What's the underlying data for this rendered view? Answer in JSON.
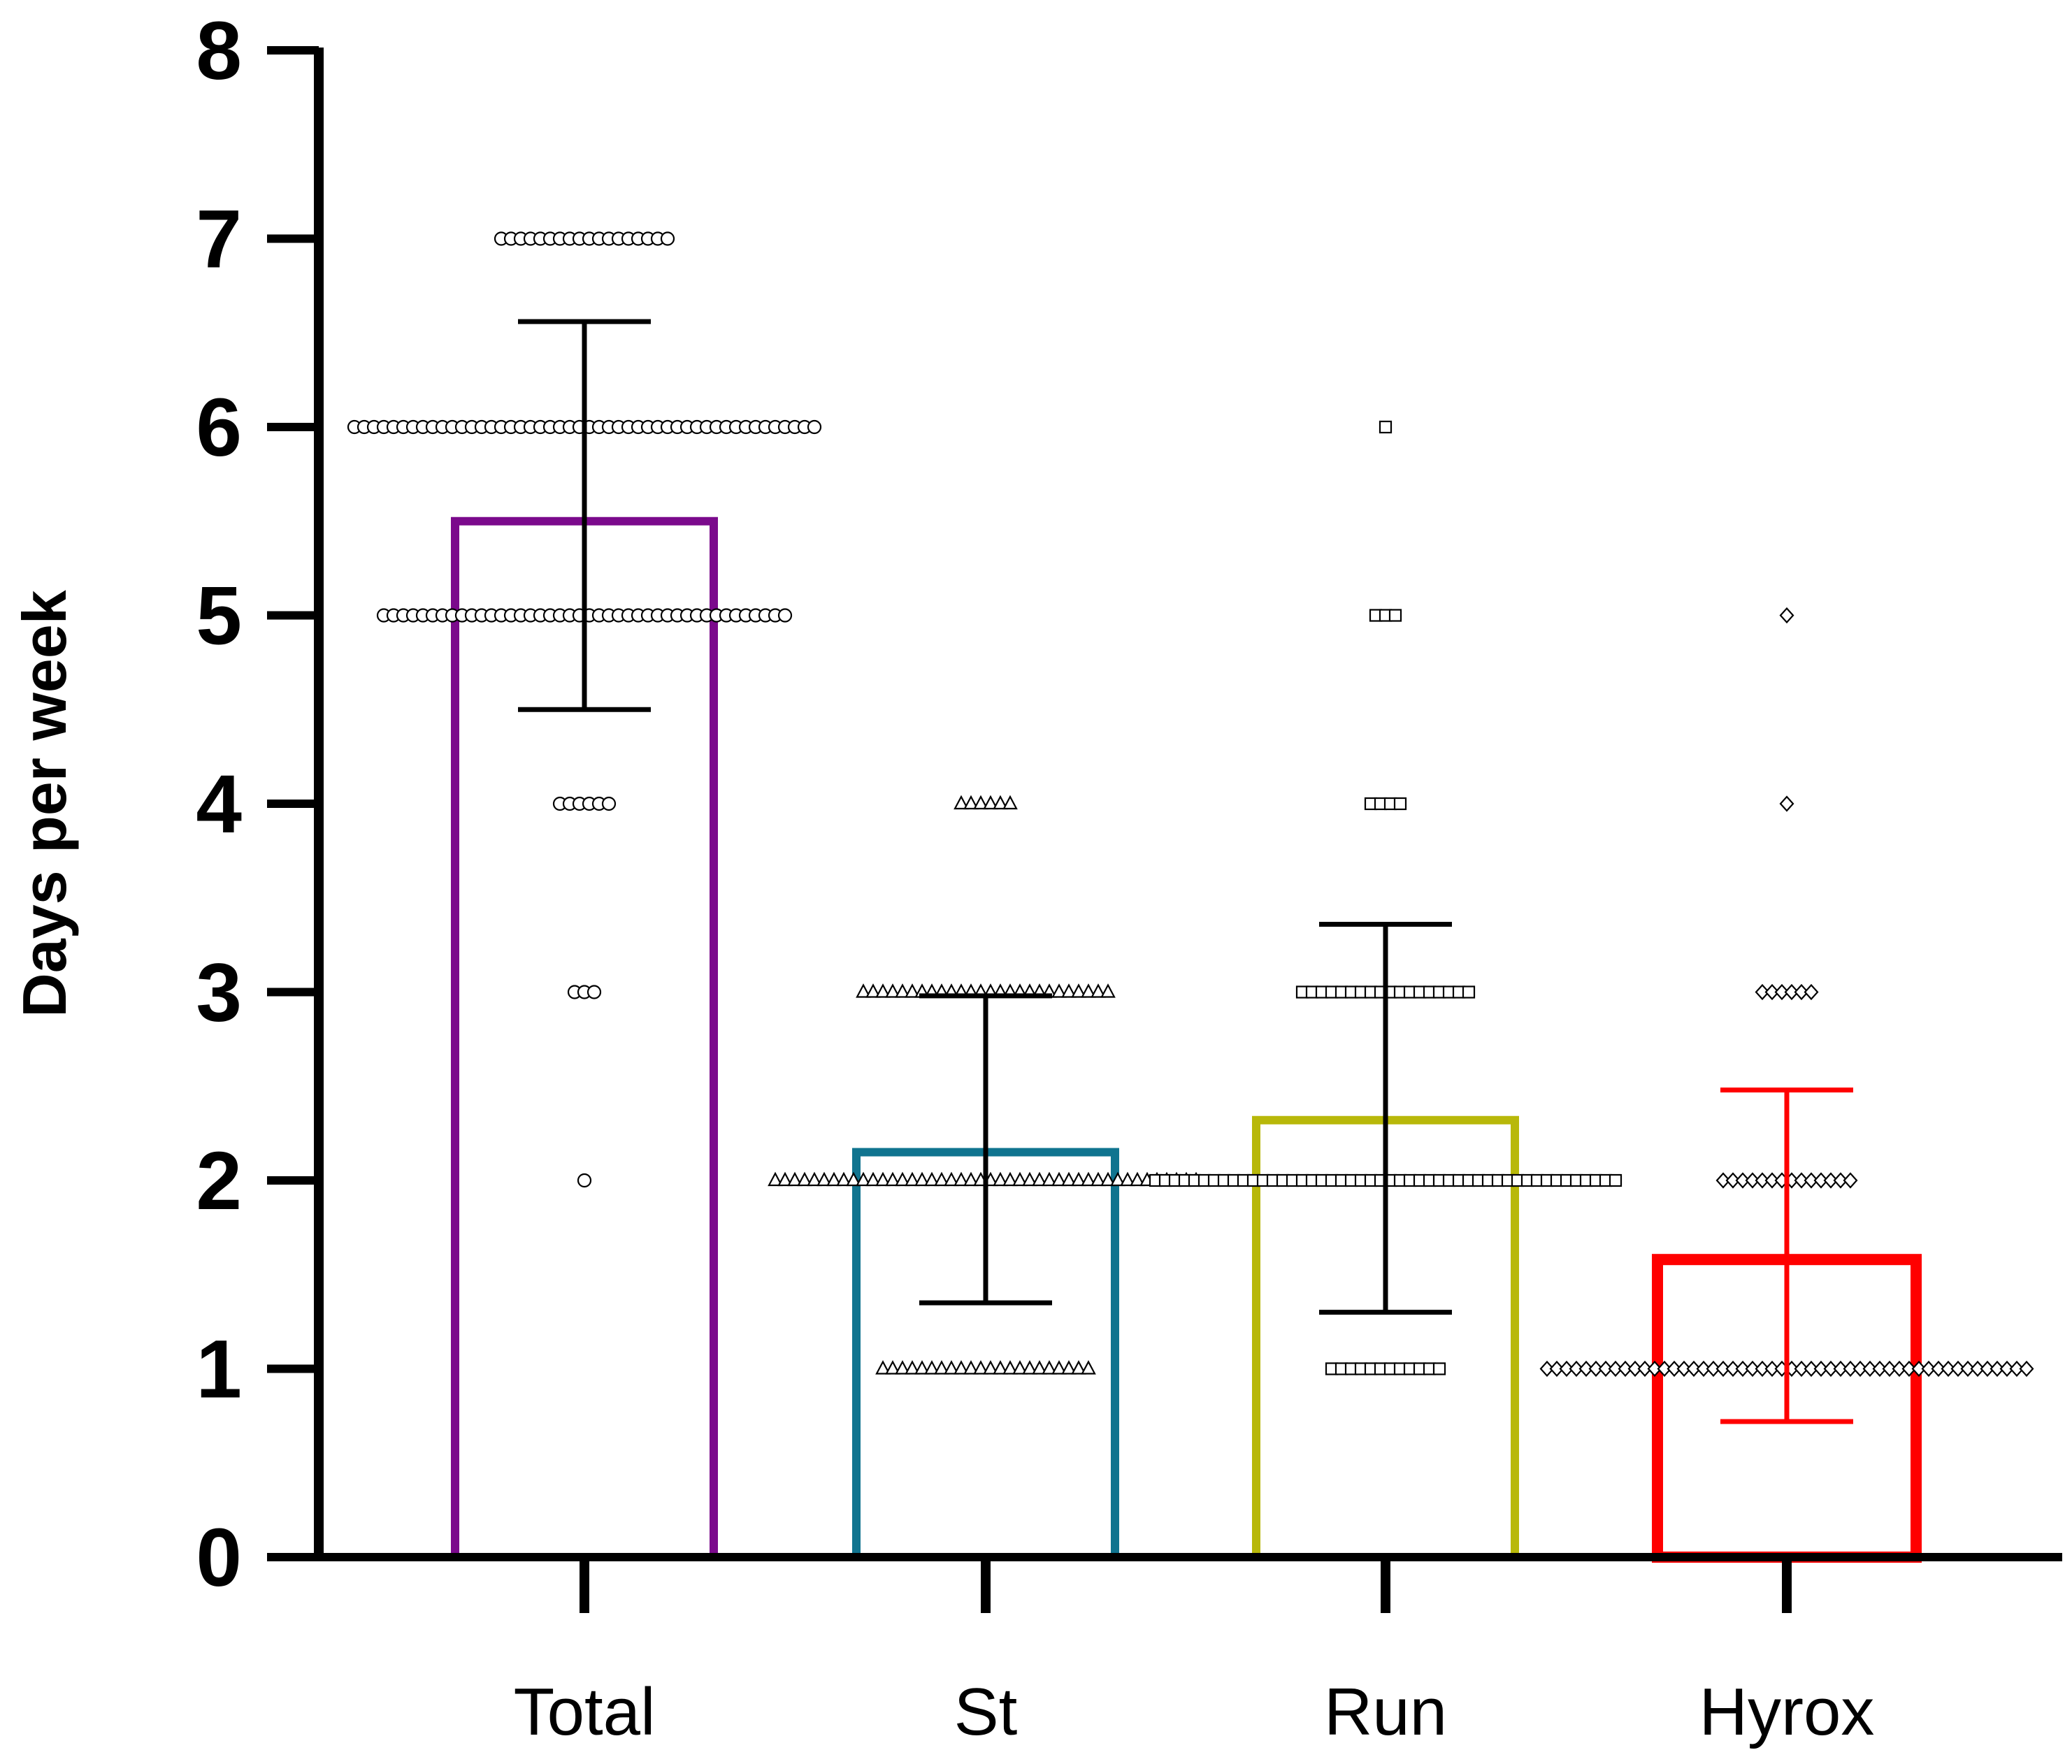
{
  "chart_data": {
    "type": "bar",
    "title": "",
    "xlabel": "",
    "ylabel": "Days per week",
    "ylim": [
      0,
      8
    ],
    "yticks": [
      "0",
      "1",
      "2",
      "3",
      "4",
      "5",
      "6",
      "7",
      "8"
    ],
    "categories": [
      "Total",
      "St",
      "Run",
      "Hyrox"
    ],
    "values": [
      5.5,
      2.15,
      2.32,
      1.58
    ],
    "error": {
      "lower": [
        4.5,
        1.35,
        1.3,
        0.72
      ],
      "upper": [
        6.56,
        2.98,
        3.36,
        2.48
      ]
    },
    "colors": [
      "#7b0a8c",
      "#10748f",
      "#b8b80a",
      "#ff0000"
    ],
    "error_colors": [
      "#000000",
      "#000000",
      "#000000",
      "#ff0000"
    ],
    "marker_shapes": [
      "circle",
      "triangle",
      "square",
      "diamond"
    ],
    "points": [
      [
        {
          "y": 7,
          "n": 18
        },
        {
          "y": 6,
          "n": 48
        },
        {
          "y": 5,
          "n": 42
        },
        {
          "y": 4,
          "n": 6
        },
        {
          "y": 3,
          "n": 3
        },
        {
          "y": 2,
          "n": 1
        }
      ],
      [
        {
          "y": 4,
          "n": 6
        },
        {
          "y": 3,
          "n": 26
        },
        {
          "y": 2,
          "n": 44
        },
        {
          "y": 1,
          "n": 22
        }
      ],
      [
        {
          "y": 6,
          "n": 1
        },
        {
          "y": 5,
          "n": 3
        },
        {
          "y": 4,
          "n": 4
        },
        {
          "y": 3,
          "n": 18
        },
        {
          "y": 2,
          "n": 48
        },
        {
          "y": 1,
          "n": 12
        }
      ],
      [
        {
          "y": 5,
          "n": 1
        },
        {
          "y": 4,
          "n": 1
        },
        {
          "y": 3,
          "n": 6
        },
        {
          "y": 2,
          "n": 14
        },
        {
          "y": 1,
          "n": 50
        }
      ]
    ]
  }
}
